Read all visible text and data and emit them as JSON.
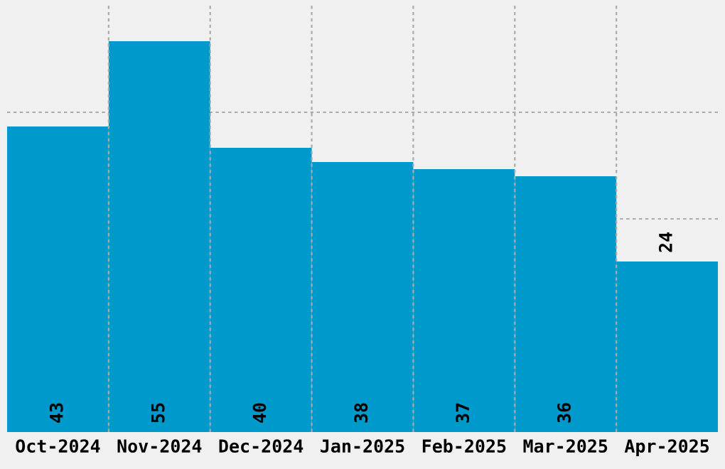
{
  "chart_data": {
    "type": "bar",
    "categories": [
      "Oct-2024",
      "Nov-2024",
      "Dec-2024",
      "Jan-2025",
      "Feb-2025",
      "Mar-2025",
      "Apr-2025"
    ],
    "values": [
      43,
      55,
      40,
      38,
      37,
      36,
      24
    ],
    "color": "#0099cc",
    "ylim": [
      0,
      60
    ],
    "yticks": [
      {
        "value": 15,
        "label": null
      },
      {
        "value": 30,
        "label": null
      },
      {
        "value": 45,
        "label": null
      }
    ],
    "grid": true,
    "data_labels": true,
    "tick_labels": "x"
  }
}
